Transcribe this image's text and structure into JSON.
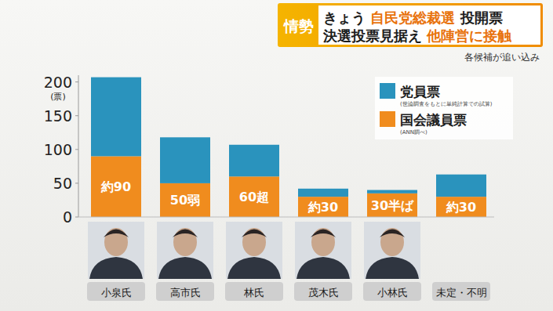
{
  "chart_data": {
    "type": "bar",
    "stacked": true,
    "title": "きょう 自民党総裁選 投開票",
    "subtitle": "決選投票見据え 他陣営に接触",
    "annotations": [
      "情勢",
      "各候補が追い込み",
      "(世論調査をもとに単純計算での試算)",
      "(ANN調べ)"
    ],
    "y_label": "(票)",
    "categories": [
      "小泉氏",
      "高市氏",
      "林氏",
      "茂木氏",
      "小林氏",
      "未定・不明"
    ],
    "series": [
      {
        "name": "国会議員票",
        "color": "#f08c1e",
        "values": [
          90,
          50,
          60,
          30,
          35,
          30
        ],
        "value_labels": [
          "約90",
          "50弱",
          "60超",
          "約30",
          "30半ば",
          "約30"
        ],
        "data_labels": true
      },
      {
        "name": "党員票",
        "color": "#2a93bd",
        "values": [
          117,
          68,
          47,
          12,
          5,
          33
        ],
        "data_labels": false
      }
    ],
    "ylim": [
      0,
      210
    ],
    "yticks": [
      0,
      50,
      100,
      150,
      200
    ],
    "grid": false,
    "legend": "upper right",
    "data_labels": true
  }
}
